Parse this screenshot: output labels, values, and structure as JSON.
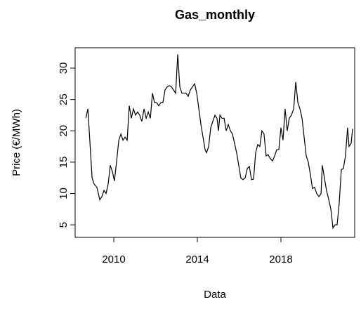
{
  "chart_data": {
    "type": "line",
    "title": "Gas_monthly",
    "x_label": "Data",
    "y_label": "Price (€/MWh)",
    "x": [
      2008.66,
      2008.76,
      2008.86,
      2008.96,
      2009.06,
      2009.19,
      2009.33,
      2009.43,
      2009.53,
      2009.63,
      2009.73,
      2009.83,
      2009.93,
      2010.03,
      2010.13,
      2010.24,
      2010.34,
      2010.44,
      2010.54,
      2010.64,
      2010.74,
      2010.84,
      2010.94,
      2011.04,
      2011.14,
      2011.24,
      2011.34,
      2011.45,
      2011.55,
      2011.65,
      2011.75,
      2011.85,
      2011.95,
      2012.05,
      2012.15,
      2012.25,
      2012.35,
      2012.45,
      2012.55,
      2012.66,
      2012.76,
      2012.86,
      2012.96,
      2013.06,
      2013.16,
      2013.26,
      2013.36,
      2013.46,
      2013.56,
      2013.66,
      2013.76,
      2013.87,
      2013.97,
      2014.07,
      2014.17,
      2014.27,
      2014.37,
      2014.44,
      2014.54,
      2014.64,
      2014.74,
      2014.84,
      2014.94,
      2015.01,
      2015.08,
      2015.18,
      2015.28,
      2015.38,
      2015.48,
      2015.58,
      2015.68,
      2015.78,
      2015.88,
      2015.98,
      2016.08,
      2016.18,
      2016.29,
      2016.39,
      2016.49,
      2016.59,
      2016.69,
      2016.79,
      2016.89,
      2016.99,
      2017.09,
      2017.19,
      2017.29,
      2017.39,
      2017.5,
      2017.6,
      2017.7,
      2017.8,
      2017.9,
      2018.0,
      2018.1,
      2018.2,
      2018.3,
      2018.4,
      2018.5,
      2018.61,
      2018.71,
      2018.81,
      2018.91,
      2019.01,
      2019.11,
      2019.21,
      2019.31,
      2019.41,
      2019.51,
      2019.61,
      2019.71,
      2019.82,
      2019.92,
      2019.98,
      2020.08,
      2020.18,
      2020.29,
      2020.39,
      2020.49,
      2020.59,
      2020.69,
      2020.79,
      2020.89,
      2020.99,
      2021.09,
      2021.19,
      2021.26,
      2021.36,
      2021.43
    ],
    "series": [
      {
        "name": "Gas_monthly",
        "color": "#000000",
        "values": [
          22,
          23.5,
          18,
          12.5,
          11.5,
          11,
          9,
          9.5,
          10.5,
          10,
          11.5,
          14.5,
          13.5,
          12,
          15,
          18.5,
          19.5,
          18.5,
          19,
          18.5,
          24,
          22,
          23.5,
          22.5,
          23,
          22.5,
          21.5,
          23.5,
          22,
          23,
          22,
          26,
          24.5,
          24.5,
          24,
          24.5,
          24.5,
          26.5,
          27,
          27.2,
          27,
          26.5,
          26,
          32.2,
          27,
          26,
          26,
          26,
          25.5,
          26.5,
          27,
          27.5,
          26,
          23.5,
          21,
          19,
          17,
          16.5,
          17.5,
          20.5,
          21.5,
          22.5,
          22,
          20,
          22.5,
          22,
          22,
          20,
          21,
          20,
          19.5,
          18,
          16.5,
          14.5,
          12.5,
          12.2,
          12.5,
          14,
          14.3,
          12.2,
          12.3,
          16.5,
          17.8,
          17.5,
          20,
          19.5,
          16,
          16.2,
          15.5,
          15.2,
          16,
          17,
          17,
          20.5,
          18.5,
          23.5,
          20,
          22,
          22.5,
          23.5,
          27.8,
          24.5,
          23.5,
          22,
          19,
          16,
          15,
          13,
          10.8,
          11,
          10,
          9.5,
          10,
          14.5,
          12.5,
          10.5,
          9,
          7.5,
          4.5,
          5,
          5,
          8.5,
          13.8,
          14,
          16,
          20.5,
          17.5,
          18,
          20.3
        ]
      }
    ],
    "xlim": [
      2008.15,
      2021.53
    ],
    "ylim": [
      3.0,
      33.25
    ],
    "xticks": [
      2010,
      2014,
      2018
    ],
    "yticks": [
      5,
      10,
      15,
      20,
      25,
      30
    ]
  }
}
